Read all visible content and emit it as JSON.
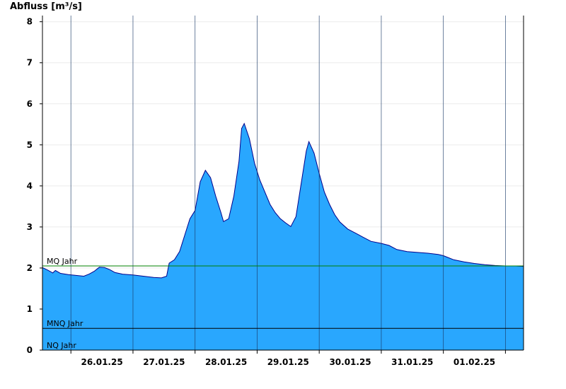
{
  "chart_data": {
    "type": "area",
    "ylabel": "Abfluss [m³/s]",
    "ylim": [
      0,
      8.15
    ],
    "yticks": [
      0,
      1,
      2,
      3,
      4,
      5,
      6,
      7,
      8
    ],
    "xlim": [
      "2025-01-25T13:00",
      "2025-02-02T07:00"
    ],
    "day_boundaries": [
      "2025-01-26T00:00",
      "2025-01-27T00:00",
      "2025-01-28T00:00",
      "2025-01-29T00:00",
      "2025-01-30T00:00",
      "2025-01-31T00:00",
      "2025-02-01T00:00",
      "2025-02-02T00:00"
    ],
    "xtick_labels": [
      {
        "date": "2025-01-26T12:00",
        "label": "26.01.25"
      },
      {
        "date": "2025-01-27T12:00",
        "label": "27.01.25"
      },
      {
        "date": "2025-01-28T12:00",
        "label": "28.01.25"
      },
      {
        "date": "2025-01-29T12:00",
        "label": "29.01.25"
      },
      {
        "date": "2025-01-30T12:00",
        "label": "30.01.25"
      },
      {
        "date": "2025-01-31T12:00",
        "label": "31.01.25"
      },
      {
        "date": "2025-02-01T12:00",
        "label": "01.02.25"
      }
    ],
    "reference_lines": [
      {
        "name": "MQ Jahr",
        "value": 2.05,
        "color": "#008000"
      },
      {
        "name": "MNQ Jahr",
        "value": 0.53,
        "color": "#000000"
      },
      {
        "name": "NQ Jahr",
        "value": 0.0,
        "color": "#000000"
      }
    ],
    "series": [
      {
        "color": "#29a7fe",
        "line_color": "#00008b",
        "points": [
          [
            "2025-01-25T13:00",
            2.01
          ],
          [
            "2025-01-25T15:00",
            1.95
          ],
          [
            "2025-01-25T17:00",
            1.88
          ],
          [
            "2025-01-25T18:00",
            1.94
          ],
          [
            "2025-01-25T20:00",
            1.87
          ],
          [
            "2025-01-25T23:00",
            1.84
          ],
          [
            "2025-01-26T02:00",
            1.82
          ],
          [
            "2025-01-26T05:00",
            1.8
          ],
          [
            "2025-01-26T07:00",
            1.85
          ],
          [
            "2025-01-26T09:00",
            1.92
          ],
          [
            "2025-01-26T11:00",
            2.02
          ],
          [
            "2025-01-26T13:00",
            2.01
          ],
          [
            "2025-01-26T15:00",
            1.96
          ],
          [
            "2025-01-26T17:00",
            1.89
          ],
          [
            "2025-01-26T20:00",
            1.85
          ],
          [
            "2025-01-27T00:00",
            1.83
          ],
          [
            "2025-01-27T04:00",
            1.8
          ],
          [
            "2025-01-27T08:00",
            1.77
          ],
          [
            "2025-01-27T11:00",
            1.76
          ],
          [
            "2025-01-27T13:00",
            1.8
          ],
          [
            "2025-01-27T14:00",
            2.12
          ],
          [
            "2025-01-27T16:00",
            2.2
          ],
          [
            "2025-01-27T18:00",
            2.4
          ],
          [
            "2025-01-27T20:00",
            2.8
          ],
          [
            "2025-01-27T22:00",
            3.2
          ],
          [
            "2025-01-28T00:00",
            3.4
          ],
          [
            "2025-01-28T02:00",
            4.1
          ],
          [
            "2025-01-28T04:00",
            4.38
          ],
          [
            "2025-01-28T06:00",
            4.2
          ],
          [
            "2025-01-28T08:00",
            3.75
          ],
          [
            "2025-01-28T10:00",
            3.35
          ],
          [
            "2025-01-28T11:00",
            3.13
          ],
          [
            "2025-01-28T13:00",
            3.2
          ],
          [
            "2025-01-28T15:00",
            3.75
          ],
          [
            "2025-01-28T17:00",
            4.6
          ],
          [
            "2025-01-28T18:00",
            5.4
          ],
          [
            "2025-01-28T19:00",
            5.52
          ],
          [
            "2025-01-28T21:00",
            5.15
          ],
          [
            "2025-01-28T23:00",
            4.55
          ],
          [
            "2025-01-29T01:00",
            4.15
          ],
          [
            "2025-01-29T03:00",
            3.85
          ],
          [
            "2025-01-29T05:00",
            3.55
          ],
          [
            "2025-01-29T07:00",
            3.35
          ],
          [
            "2025-01-29T09:00",
            3.2
          ],
          [
            "2025-01-29T11:00",
            3.1
          ],
          [
            "2025-01-29T13:00",
            3.01
          ],
          [
            "2025-01-29T15:00",
            3.25
          ],
          [
            "2025-01-29T17:00",
            4.05
          ],
          [
            "2025-01-29T19:00",
            4.85
          ],
          [
            "2025-01-29T20:00",
            5.08
          ],
          [
            "2025-01-29T22:00",
            4.8
          ],
          [
            "2025-01-30T00:00",
            4.3
          ],
          [
            "2025-01-30T02:00",
            3.85
          ],
          [
            "2025-01-30T04:00",
            3.55
          ],
          [
            "2025-01-30T06:00",
            3.3
          ],
          [
            "2025-01-30T08:00",
            3.12
          ],
          [
            "2025-01-30T11:00",
            2.95
          ],
          [
            "2025-01-30T14:00",
            2.85
          ],
          [
            "2025-01-30T17:00",
            2.75
          ],
          [
            "2025-01-30T20:00",
            2.65
          ],
          [
            "2025-01-31T00:00",
            2.6
          ],
          [
            "2025-01-31T03:00",
            2.55
          ],
          [
            "2025-01-31T06:00",
            2.45
          ],
          [
            "2025-01-31T10:00",
            2.4
          ],
          [
            "2025-01-31T14:00",
            2.38
          ],
          [
            "2025-01-31T18:00",
            2.36
          ],
          [
            "2025-01-31T22:00",
            2.33
          ],
          [
            "2025-02-01T00:00",
            2.3
          ],
          [
            "2025-02-01T04:00",
            2.2
          ],
          [
            "2025-02-01T08:00",
            2.15
          ],
          [
            "2025-02-01T12:00",
            2.11
          ],
          [
            "2025-02-01T16:00",
            2.08
          ],
          [
            "2025-02-01T20:00",
            2.06
          ],
          [
            "2025-02-02T00:00",
            2.05
          ],
          [
            "2025-02-02T04:00",
            2.05
          ],
          [
            "2025-02-02T07:00",
            2.04
          ]
        ]
      }
    ]
  }
}
